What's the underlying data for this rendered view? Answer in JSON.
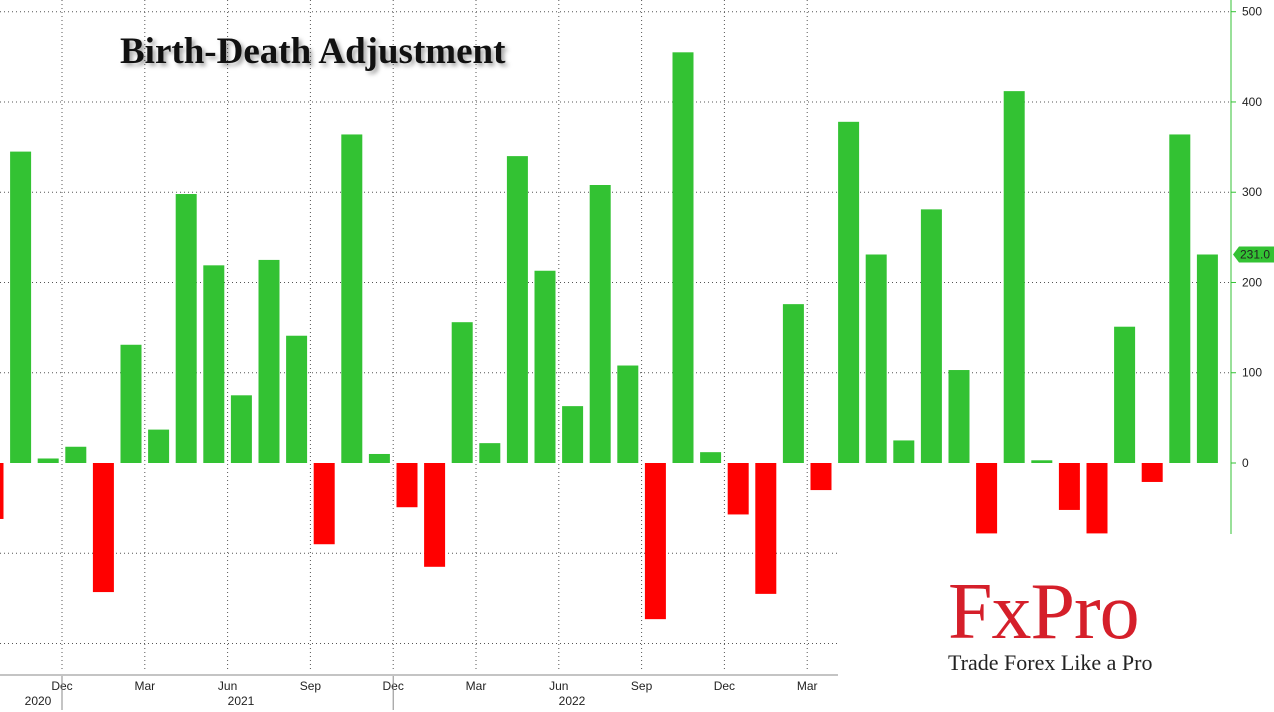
{
  "chart_data": {
    "type": "bar",
    "title": "Birth-Death Adjustment",
    "xlabel": "",
    "ylabel": "",
    "ylim": [
      -200,
      500
    ],
    "yticks": [
      500,
      400,
      300,
      200,
      100,
      0
    ],
    "grid": true,
    "colors": {
      "positive": "#33c233",
      "negative": "#ff0000",
      "axis": "#33c233"
    },
    "last_value_label": "231.0",
    "month_ticks": [
      "Dec",
      "Mar",
      "Jun",
      "Sep",
      "Dec",
      "Mar",
      "Jun",
      "Sep",
      "Dec",
      "Mar"
    ],
    "year_labels": [
      "2020",
      "2021",
      "2022"
    ],
    "series": [
      {
        "values": [
          -62,
          345,
          5,
          18,
          -143,
          131,
          37,
          298,
          219,
          75,
          225,
          141,
          -90,
          364,
          10,
          -49,
          -115,
          156,
          22,
          340,
          213,
          63,
          308,
          108,
          -173,
          455,
          12,
          -57,
          -145,
          176,
          -30,
          378,
          231,
          25,
          281,
          103,
          -78,
          412,
          3,
          -52,
          -78,
          151,
          -21,
          364,
          231
        ]
      }
    ]
  },
  "watermark": {
    "logo": "FxPro",
    "tagline": "Trade Forex Like a Pro"
  }
}
